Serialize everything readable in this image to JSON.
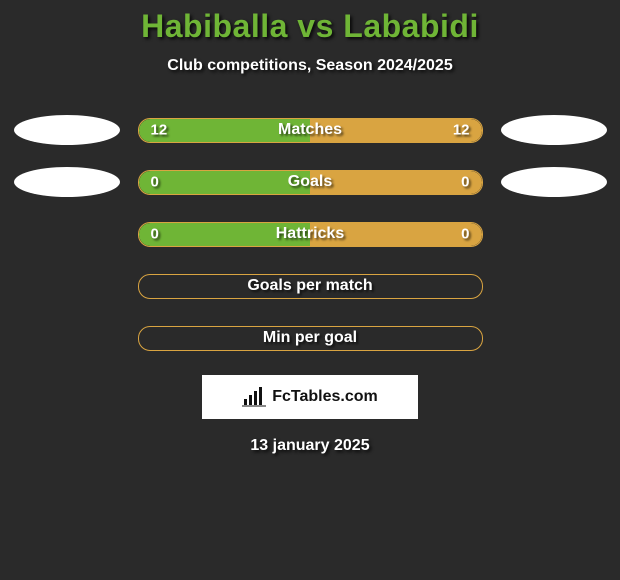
{
  "background_color": "#2a2a2a",
  "title": {
    "text": "Habiballa vs Lababidi",
    "color": "#6fb536",
    "fontsize": 32
  },
  "subtitle": {
    "text": "Club competitions, Season 2024/2025",
    "color": "#ffffff",
    "fontsize": 16
  },
  "ellipse_left_color": "#ffffff",
  "ellipse_right_color": "#ffffff",
  "bar_border_color": "#d9a441",
  "bar_fill_green": "#6fb536",
  "bar_fill_yellow": "#d9a441",
  "bar_text_color": "#ffffff",
  "rows": [
    {
      "label": "Matches",
      "left_value": "12",
      "right_value": "12",
      "left_pct": 50,
      "right_pct": 50,
      "has_ellipses": true,
      "filled": true
    },
    {
      "label": "Goals",
      "left_value": "0",
      "right_value": "0",
      "left_pct": 50,
      "right_pct": 50,
      "has_ellipses": true,
      "filled": true
    },
    {
      "label": "Hattricks",
      "left_value": "0",
      "right_value": "0",
      "left_pct": 50,
      "right_pct": 50,
      "has_ellipses": false,
      "filled": true
    },
    {
      "label": "Goals per match",
      "left_value": "",
      "right_value": "",
      "left_pct": 0,
      "right_pct": 0,
      "has_ellipses": false,
      "filled": false
    },
    {
      "label": "Min per goal",
      "left_value": "",
      "right_value": "",
      "left_pct": 0,
      "right_pct": 0,
      "has_ellipses": false,
      "filled": false
    }
  ],
  "attribution": {
    "text": "FcTables.com",
    "background": "#ffffff",
    "text_color": "#111111",
    "icon_color": "#111111"
  },
  "date": {
    "text": "13 january 2025",
    "color": "#ffffff",
    "fontsize": 16
  }
}
